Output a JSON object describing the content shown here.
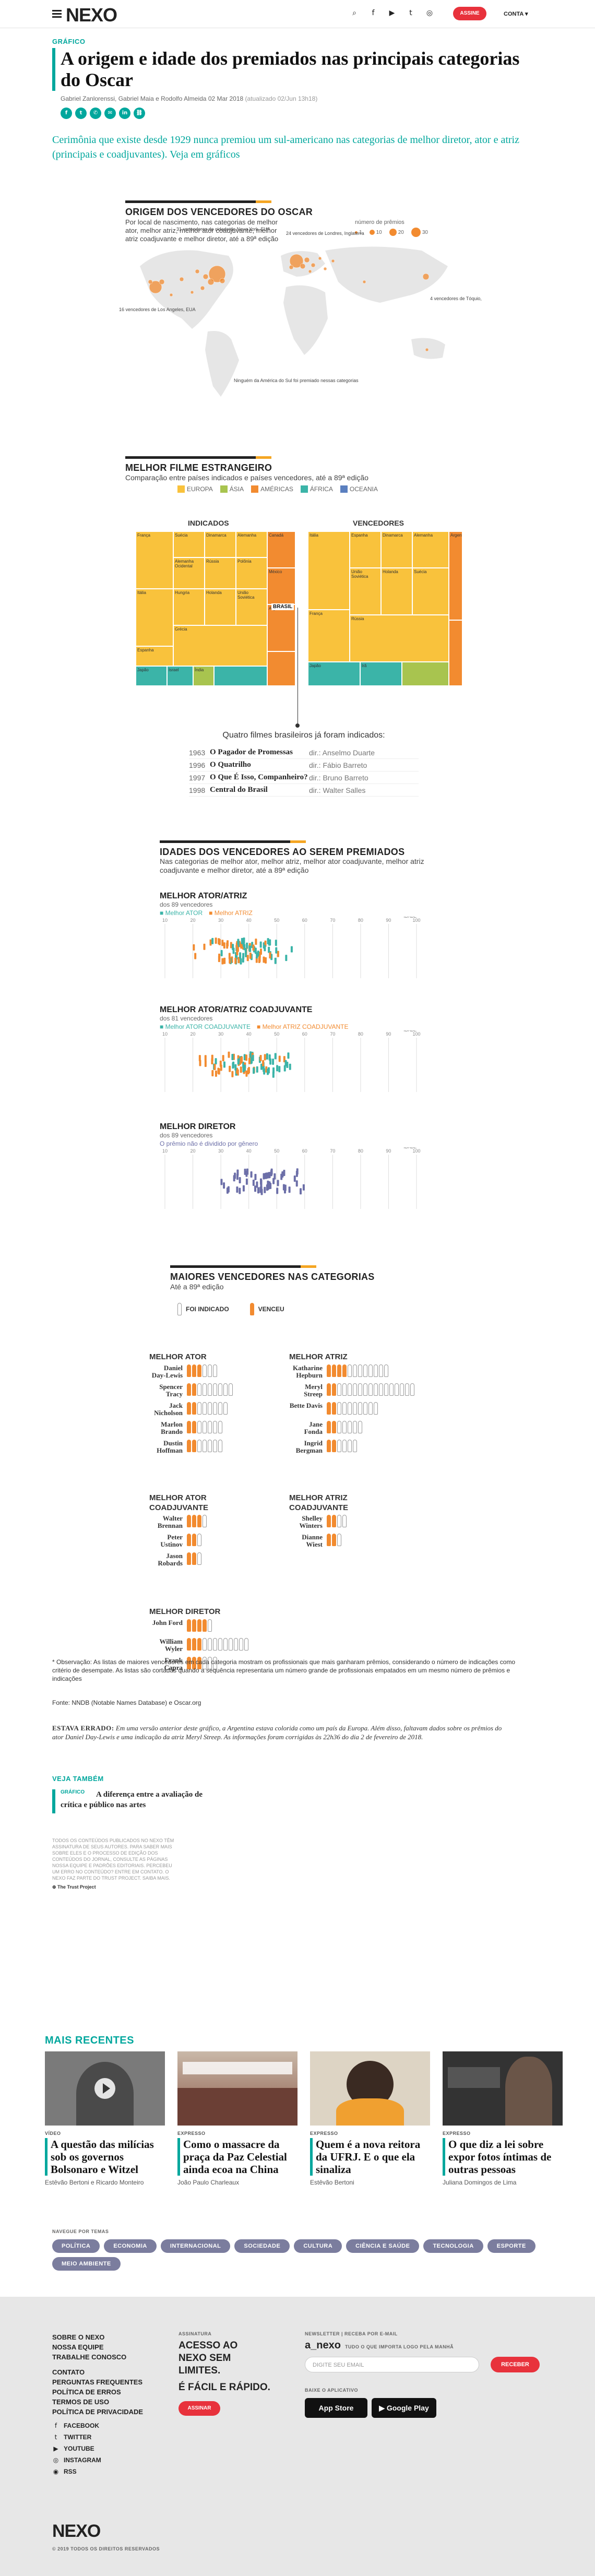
{
  "header": {
    "logo": "NEXO",
    "subscribe": "ASSINE",
    "account": "CONTA",
    "icons": [
      "search-icon",
      "facebook-icon",
      "youtube-icon",
      "twitter-icon",
      "instagram-icon"
    ]
  },
  "article": {
    "kicker": "GRÁFICO",
    "title": "A origem e idade dos premiados nas principais categorias do Oscar",
    "authors": "Gabriel Zanlorenssi, Gabriel Maia e Rodolfo Almeida",
    "date": "02 Mar 2018",
    "updated": "(atualizado 02/Jun 13h18)",
    "lead": "Cerimônia que existe desde 1929 nunca premiou um sul-americano nas categorias de melhor diretor, ator e atriz (principais e coadjuvantes). Veja em gráficos"
  },
  "map": {
    "title": "ORIGEM DOS VENCEDORES DO OSCAR",
    "subtitle": "Por local de nascimento, nas categorias de melhor ator, melhor atriz, melhor ator coadjuvante, melhor atriz coadjuvante e melhor diretor, até a 89ª edição",
    "legend_title": "número de prêmios",
    "legend_values": [
      "1",
      "10",
      "20",
      "30"
    ],
    "annotations": [
      "31 vencedores de cidade de Nova York, EUA",
      "24 vencedores de Londres, Inglaterra",
      "16 vencedores de Los Angeles, EUA",
      "4 vencedores de Tóquio, Japão",
      "Ninguém da América do Sul foi premiado nessas categorias"
    ],
    "color": "#f28b30"
  },
  "film": {
    "title": "MELHOR FILME ESTRANGEIRO",
    "subtitle": "Comparação entre países indicados e países vencedores, até a 89ª edição",
    "legend": [
      {
        "label": "EUROPA",
        "color": "#f9c23c"
      },
      {
        "label": "ÁSIA",
        "color": "#a8c44f"
      },
      {
        "label": "AMÉRICAS",
        "color": "#f28b30"
      },
      {
        "label": "ÁFRICA",
        "color": "#3bb4a8"
      },
      {
        "label": "OCEANIA",
        "color": "#3bb4a8"
      }
    ],
    "indicated_label": "INDICADOS",
    "winners_label": "VENCEDORES",
    "indicated_cells": [
      "França",
      "Itália",
      "Espanha",
      "Suécia",
      "Dinamarca",
      "Alemanha",
      "Alemanha Ocidental",
      "Rússia",
      "Polônia",
      "Hungria",
      "Holanda",
      "União Soviética",
      "Grécia",
      "Japão",
      "Israel",
      "Índia",
      "Canadá",
      "México",
      "Argentina",
      "Brasil"
    ],
    "winner_cells": [
      "Itália",
      "França",
      "Espanha",
      "Dinamarca",
      "Alemanha",
      "União Soviética",
      "Holanda",
      "Suécia",
      "Rússia",
      "Japão",
      "Irã",
      "Argentina"
    ],
    "brazil_label": "BRASIL",
    "brazil_heading": "Quatro filmes brasileiros já foram indicados:",
    "brazil_films": [
      {
        "year": "1963",
        "title": "O Pagador de Promessas",
        "dir": "dir.: Anselmo Duarte"
      },
      {
        "year": "1996",
        "title": "O Quatrilho",
        "dir": "dir.: Fábio Barreto"
      },
      {
        "year": "1997",
        "title": "O Que É Isso, Companheiro?",
        "dir": "dir.: Bruno Barreto"
      },
      {
        "year": "1998",
        "title": "Central do Brasil",
        "dir": "dir.: Walter Salles"
      }
    ]
  },
  "ages": {
    "title": "IDADES DOS VENCEDORES AO SEREM PREMIADOS",
    "subtitle": "Nas categorias de melhor ator, melhor atriz, melhor ator coadjuvante, melhor atriz coadjuvante e melhor diretor, até a 89ª edição",
    "axis_label": "IDADE",
    "ticks": [
      "10",
      "20",
      "30",
      "40",
      "50",
      "60",
      "70",
      "80",
      "90",
      "100"
    ],
    "charts": [
      {
        "title": "MELHOR ATOR/ATRIZ",
        "sub": "dos 89 vencedores",
        "leg_a": "Melhor ATOR",
        "leg_b": "Melhor ATRIZ"
      },
      {
        "title": "MELHOR ATOR/ATRIZ COADJUVANTE",
        "sub": "dos 81 vencedores",
        "leg_a": "Melhor ATOR COADJUVANTE",
        "leg_b": "Melhor ATRIZ COADJUVANTE"
      },
      {
        "title": "MELHOR DIRETOR",
        "sub": "dos 89 vencedores",
        "leg_a": "O prêmio não é dividido por gênero",
        "leg_b": ""
      }
    ],
    "colors": {
      "a": "#3bb4a8",
      "b": "#f28b30",
      "c": "#6c6fa8"
    }
  },
  "winners": {
    "title": "MAIORES VENCEDORES NAS CATEGORIAS",
    "subtitle": "Até a 89ª edição",
    "leg_ind": "FOI INDICADO",
    "leg_won": "VENCEU",
    "groups": [
      {
        "cat": "MELHOR ATOR",
        "people": [
          {
            "name": "Daniel Day-Lewis",
            "won": 3,
            "nom": 6
          },
          {
            "name": "Spencer Tracy",
            "won": 2,
            "nom": 9
          },
          {
            "name": "Jack Nicholson",
            "won": 2,
            "nom": 8
          },
          {
            "name": "Marlon Brando",
            "won": 2,
            "nom": 7
          },
          {
            "name": "Dustin Hoffman",
            "won": 2,
            "nom": 7
          }
        ]
      },
      {
        "cat": "MELHOR ATRIZ",
        "people": [
          {
            "name": "Katharine Hepburn",
            "won": 4,
            "nom": 12
          },
          {
            "name": "Meryl Streep",
            "won": 2,
            "nom": 17
          },
          {
            "name": "Bette Davis",
            "won": 2,
            "nom": 10
          },
          {
            "name": "Jane Fonda",
            "won": 2,
            "nom": 7
          },
          {
            "name": "Ingrid Bergman",
            "won": 2,
            "nom": 6
          }
        ]
      },
      {
        "cat": "MELHOR ATOR COADJUVANTE",
        "people": [
          {
            "name": "Walter Brennan",
            "won": 3,
            "nom": 4
          },
          {
            "name": "Peter Ustinov",
            "won": 2,
            "nom": 3
          },
          {
            "name": "Jason Robards",
            "won": 2,
            "nom": 3
          }
        ]
      },
      {
        "cat": "MELHOR ATRIZ COADJUVANTE",
        "people": [
          {
            "name": "Shelley Winters",
            "won": 2,
            "nom": 4
          },
          {
            "name": "Dianne Wiest",
            "won": 2,
            "nom": 3
          }
        ]
      },
      {
        "cat": "MELHOR DIRETOR",
        "people": [
          {
            "name": "John Ford",
            "won": 4,
            "nom": 5
          },
          {
            "name": "William Wyler",
            "won": 3,
            "nom": 12
          },
          {
            "name": "Frank Capra",
            "won": 3,
            "nom": 6
          }
        ]
      }
    ]
  },
  "notes": {
    "obs": "* Observação: As listas de maiores vencedores em cada categoria mostram os profissionais que mais ganharam prêmios, considerando o número de indicações como critério de desempate. As listas são cortadas quando a sequência representaria um número grande de profissionais empatados em um mesmo número de prêmios e indicações",
    "source": "Fonte: NNDB (Notable Names Database) e Oscar.org",
    "errata_label": "ESTAVA ERRADO:",
    "errata": "Em uma versão anterior deste gráfico, a Argentina estava colorida como um país da Europa. Além disso, faltavam dados sobre os prêmios do ator Daniel Day-Lewis e uma indicação da atriz Meryl Streep. As informações foram corrigidas às 22h36 do dia 2 de fevereiro de 2018.",
    "see_also": "VEJA TAMBÉM",
    "see_kicker": "GRÁFICO",
    "see_title": "A diferença entre a avaliação de crítica e público nas artes",
    "fine": "TODOS OS CONTEÚDOS PUBLICADOS NO NEXO TÊM ASSINATURA DE SEUS AUTORES. PARA SABER MAIS SOBRE ELES E O PROCESSO DE EDIÇÃO DOS CONTEÚDOS DO JORNAL, CONSULTE AS PÁGINAS NOSSA EQUIPE E PADRÕES EDITORIAIS. PERCEBEU UM ERRO NO CONTEÚDO? ENTRE EM CONTATO. O NEXO FAZ PARTE DO TRUST PROJECT. SAIBA MAIS.",
    "trust": "The Trust Project"
  },
  "recent": {
    "title": "MAIS RECENTES",
    "cards": [
      {
        "tag": "VÍDEO",
        "title": "A questão das milícias sob os governos Bolsonaro e Witzel",
        "author": "Estêvão Bertoni e Ricardo Monteiro"
      },
      {
        "tag": "EXPRESSO",
        "title": "Como o massacre da praça da Paz Celestial ainda ecoa na China",
        "author": "João Paulo Charleaux"
      },
      {
        "tag": "EXPRESSO",
        "title": "Quem é a nova reitora da UFRJ. E o que ela sinaliza",
        "author": "Estêvão Bertoni"
      },
      {
        "tag": "EXPRESSO",
        "title": "O que diz a lei sobre expor fotos íntimas de outras pessoas",
        "author": "Juliana Domingos de Lima"
      }
    ],
    "nav_label": "NAVEGUE POR TEMAS",
    "chips": [
      "POLÍTICA",
      "ECONOMIA",
      "INTERNACIONAL",
      "SOCIEDADE",
      "CULTURA",
      "CIÊNCIA E SAÚDE",
      "TECNOLOGIA",
      "ESPORTE",
      "MEIO AMBIENTE"
    ]
  },
  "footer": {
    "links": [
      "SOBRE O NEXO",
      "NOSSA EQUIPE",
      "TRABALHE CONOSCO",
      "CONTATO",
      "PERGUNTAS FREQUENTES",
      "POLÍTICA DE ERROS",
      "TERMOS DE USO",
      "POLÍTICA DE PRIVACIDADE"
    ],
    "social": [
      "FACEBOOK",
      "TWITTER",
      "YOUTUBE",
      "INSTAGRAM",
      "RSS"
    ],
    "sig_label": "ASSINATURA",
    "sig_head": "ACESSO AO NEXO SEM LIMITES.",
    "sig_sub": "É FÁCIL E RÁPIDO.",
    "sig_btn": "ASSINAR",
    "nl_label": "NEWSLETTER | RECEBA POR E-MAIL",
    "nl_logo": "a_nexo",
    "nl_sub": "TUDO O QUE IMPORTA LOGO PELA MANHÃ",
    "nl_placeholder": "DIGITE SEU EMAIL",
    "nl_btn": "RECEBER",
    "app_label": "BAIXE O APLICATIVO",
    "appstore": "App Store",
    "googleplay": "Google Play",
    "logo": "NEXO",
    "copyright": "© 2019 TODOS OS DIREITOS RESERVADOS"
  }
}
